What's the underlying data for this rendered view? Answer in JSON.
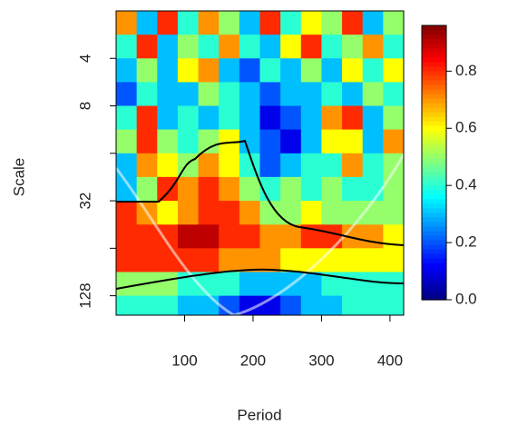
{
  "chart_data": {
    "type": "heatmap",
    "xlabel": "Period",
    "ylabel": "Scale",
    "xbins": [
      0,
      30,
      60,
      90,
      120,
      150,
      180,
      210,
      240,
      270,
      300,
      330,
      360,
      390,
      420
    ],
    "ybins": [
      2,
      2.83,
      4,
      5.66,
      8,
      11.3,
      16,
      22.6,
      32,
      45.3,
      64,
      90.5,
      128,
      170
    ],
    "values": [
      [
        0.7,
        0.3,
        0.8,
        0.4,
        0.7,
        0.5,
        0.3,
        0.8,
        0.4,
        0.6,
        0.5,
        0.8,
        0.3,
        0.5
      ],
      [
        0.4,
        0.8,
        0.3,
        0.5,
        0.4,
        0.7,
        0.4,
        0.3,
        0.6,
        0.8,
        0.4,
        0.5,
        0.7,
        0.4
      ],
      [
        0.3,
        0.5,
        0.3,
        0.6,
        0.7,
        0.3,
        0.2,
        0.4,
        0.3,
        0.5,
        0.3,
        0.6,
        0.4,
        0.6
      ],
      [
        0.2,
        0.4,
        0.3,
        0.3,
        0.5,
        0.4,
        0.3,
        0.2,
        0.3,
        0.3,
        0.4,
        0.3,
        0.5,
        0.4
      ],
      [
        0.4,
        0.8,
        0.3,
        0.4,
        0.3,
        0.4,
        0.3,
        0.1,
        0.2,
        0.3,
        0.7,
        0.8,
        0.3,
        0.5
      ],
      [
        0.5,
        0.8,
        0.5,
        0.4,
        0.5,
        0.6,
        0.3,
        0.2,
        0.1,
        0.3,
        0.6,
        0.6,
        0.3,
        0.7
      ],
      [
        0.3,
        0.7,
        0.6,
        0.5,
        0.7,
        0.6,
        0.4,
        0.2,
        0.3,
        0.4,
        0.4,
        0.7,
        0.4,
        0.5
      ],
      [
        0.3,
        0.5,
        0.8,
        0.7,
        0.8,
        0.7,
        0.5,
        0.4,
        0.5,
        0.4,
        0.5,
        0.4,
        0.4,
        0.5
      ],
      [
        0.8,
        0.7,
        0.6,
        0.7,
        0.8,
        0.8,
        0.7,
        0.5,
        0.5,
        0.6,
        0.5,
        0.5,
        0.5,
        0.5
      ],
      [
        0.8,
        0.8,
        0.8,
        0.9,
        0.9,
        0.8,
        0.8,
        0.7,
        0.7,
        0.8,
        0.8,
        0.7,
        0.7,
        0.6
      ],
      [
        0.8,
        0.8,
        0.8,
        0.8,
        0.8,
        0.7,
        0.7,
        0.7,
        0.6,
        0.6,
        0.6,
        0.6,
        0.6,
        0.6
      ],
      [
        0.5,
        0.5,
        0.5,
        0.4,
        0.4,
        0.4,
        0.3,
        0.3,
        0.3,
        0.3,
        0.4,
        0.4,
        0.4,
        0.4
      ],
      [
        0.4,
        0.4,
        0.4,
        0.3,
        0.3,
        0.2,
        0.1,
        0.1,
        0.2,
        0.3,
        0.3,
        0.4,
        0.4,
        0.4
      ]
    ],
    "xlim": [
      0,
      420
    ],
    "xticks": [
      100,
      200,
      300,
      400
    ],
    "ylim": [
      2,
      170
    ],
    "y_log": true,
    "y_reversed": true,
    "yticks": [
      4,
      8,
      {
        "value": 16,
        "label": null
      },
      32,
      {
        "value": 64,
        "label": null
      },
      128
    ],
    "zlim": [
      0,
      0.96
    ],
    "zticks": [
      {
        "value": 0,
        "label": "0.0"
      },
      0.2,
      0.4,
      0.6,
      0.8
    ],
    "colormap": [
      "#00007f",
      "#0000ff",
      "#007fff",
      "#00ffff",
      "#7fff7f",
      "#ffff00",
      "#ff7f00",
      "#ff0000",
      "#7f0000"
    ]
  }
}
